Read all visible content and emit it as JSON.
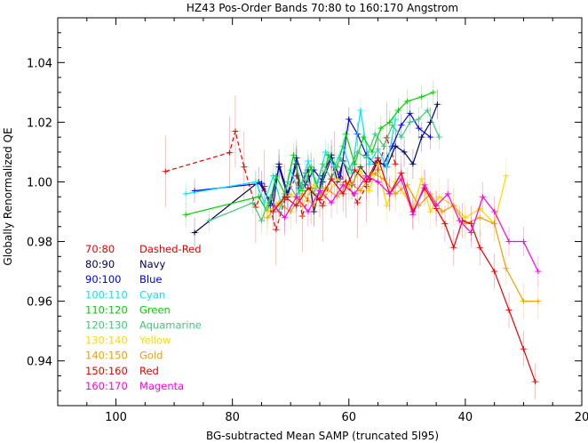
{
  "chart_data": {
    "type": "line",
    "title": "HZ43 Pos-Order Bands 70:80 to 160:170 Angstrom",
    "xlabel": "BG-subtracted Mean SAMP (truncated 5l95)",
    "ylabel": "Globally Renormalized QE",
    "xlim": [
      110,
      20
    ],
    "ylim": [
      0.925,
      1.055
    ],
    "x_reversed": true,
    "xticks": [
      100,
      80,
      60,
      40,
      20
    ],
    "yticks": [
      0.94,
      0.96,
      0.98,
      1.0,
      1.02,
      1.04
    ],
    "ytick_labels": [
      "0.94",
      "0.96",
      "0.98",
      "1.00",
      "1.02",
      "1.04"
    ],
    "grid": false,
    "legend_position": "bottom-left",
    "series": [
      {
        "name": "70:80",
        "style": "Dashed-Red",
        "color": "#e80000",
        "dashed": true,
        "x": [
          91.5,
          80.5,
          79.5,
          78.0,
          76.0,
          74.5,
          72.5,
          71.0,
          69.0,
          68.0,
          66.5,
          64.5,
          62.5,
          60.5,
          58.5,
          57.0,
          55.0,
          53.5,
          52.0
        ],
        "y": [
          1.0035,
          1.0098,
          1.017,
          1.005,
          0.9915,
          0.9985,
          0.984,
          0.994,
          1.002,
          0.9885,
          0.9978,
          0.992,
          1.005,
          1.0,
          0.993,
          0.9985,
          1.004,
          1.0148,
          1.006
        ],
        "yerr": 0.012
      },
      {
        "name": "80:90",
        "style": "Navy",
        "color": "#00005a",
        "dashed": false,
        "x": [
          86.5,
          75.5,
          73.0,
          72.0,
          70.5,
          69.0,
          68.5,
          67.0,
          66.0,
          64.5,
          63.0,
          62.0,
          61.0,
          59.5,
          58.0,
          56.5,
          55.0,
          53.5,
          52.0,
          50.5,
          49.0,
          47.5,
          46.0,
          44.8
        ],
        "y": [
          0.983,
          1.0,
          0.992,
          1.006,
          0.996,
          1.006,
          0.998,
          1.004,
          0.99,
          1.002,
          1.009,
          1.0,
          1.007,
          0.999,
          1.005,
          1.001,
          1.007,
          1.005,
          1.012,
          1.01,
          1.006,
          1.015,
          1.02,
          1.026
        ],
        "yerr": 0.005
      },
      {
        "name": "90:100",
        "style": "Blue",
        "color": "#0000e0",
        "dashed": false,
        "x": [
          86.5,
          75.0,
          73.5,
          72.0,
          70.5,
          69.0,
          67.5,
          66.0,
          64.5,
          63.0,
          61.5,
          60.0,
          58.5,
          57.0,
          55.5,
          54.0,
          52.5,
          51.0,
          49.5,
          48.0,
          46.0
        ],
        "y": [
          0.997,
          0.9995,
          0.992,
          1.005,
          0.995,
          1.008,
          0.999,
          1.004,
          1.0,
          1.008,
          1.001,
          1.021,
          1.016,
          1.009,
          1.006,
          1.006,
          1.012,
          1.019,
          1.023,
          1.018,
          1.015
        ],
        "yerr": 0.004
      },
      {
        "name": "100:110",
        "style": "Cyan",
        "color": "#00e8f0",
        "dashed": false,
        "x": [
          88.0,
          76.0,
          74.5,
          73.0,
          71.5,
          70.0,
          68.5,
          67.0,
          65.5,
          64.0,
          62.5,
          61.0,
          59.5,
          58.0,
          56.5,
          55.0,
          53.5,
          52.0
        ],
        "y": [
          0.996,
          1.0,
          0.993,
          1.002,
          0.992,
          1.004,
          0.996,
          1.007,
          0.998,
          1.01,
          1.005,
          1.012,
          1.003,
          1.024,
          1.006,
          1.011,
          1.005,
          1.021
        ],
        "yerr": 0.004
      },
      {
        "name": "110:120",
        "style": "Green",
        "color": "#00d000",
        "dashed": false,
        "x": [
          88.0,
          75.5,
          74.0,
          72.5,
          71.0,
          69.5,
          68.0,
          66.5,
          65.0,
          63.5,
          62.0,
          60.5,
          59.0,
          57.5,
          56.0,
          54.5,
          53.0,
          51.5,
          50.0,
          47.5,
          45.5
        ],
        "y": [
          0.989,
          0.995,
          0.99,
          1.002,
          0.996,
          1.009,
          0.997,
          1.005,
          0.996,
          1.009,
          1.005,
          1.016,
          1.006,
          1.015,
          1.01,
          1.018,
          1.02,
          1.024,
          1.027,
          1.0285,
          1.03
        ],
        "yerr": 0.004
      },
      {
        "name": "120:130",
        "style": "Aquamarine",
        "color": "#3cc87c",
        "dashed": false,
        "x": [
          84.0,
          76.5,
          75.0,
          73.5,
          72.0,
          70.5,
          69.0,
          67.5,
          66.0,
          64.5,
          63.0,
          61.5,
          60.0,
          58.5,
          57.0,
          55.5,
          54.0,
          52.5,
          51.0,
          49.5,
          48.0,
          46.5,
          44.5
        ],
        "y": [
          0.987,
          0.993,
          0.987,
          0.995,
          0.99,
          1.0,
          0.995,
          1.003,
          0.996,
          1.006,
          1.001,
          1.008,
          1.004,
          1.01,
          1.008,
          1.016,
          1.012,
          1.019,
          1.015,
          1.02,
          1.021,
          1.024,
          1.015
        ],
        "yerr": 0.004
      },
      {
        "name": "130:140",
        "style": "Yellow",
        "color": "#ffd800",
        "dashed": false,
        "x": [
          74.0,
          72.0,
          70.0,
          68.0,
          66.0,
          64.0,
          62.0,
          60.0,
          58.0,
          56.5,
          55.0,
          53.5,
          52.0,
          50.5,
          49.0,
          47.5,
          46.0,
          44.5,
          42.0,
          40.0,
          37.5,
          35.0,
          33.0
        ],
        "y": [
          0.99,
          0.993,
          0.996,
          0.992,
          0.999,
          0.995,
          1.001,
          0.998,
          1.004,
          0.997,
          1.006,
          0.992,
          1.0,
          0.996,
          0.991,
          1.001,
          0.99,
          0.995,
          0.992,
          0.988,
          0.991,
          0.986,
          1.002
        ],
        "yerr": 0.006
      },
      {
        "name": "140:150",
        "style": "Gold",
        "color": "#f0a000",
        "dashed": false,
        "x": [
          74.0,
          72.0,
          70.0,
          68.0,
          66.0,
          64.0,
          62.0,
          60.0,
          58.0,
          56.0,
          54.0,
          52.0,
          50.0,
          48.0,
          46.0,
          44.0,
          42.0,
          40.0,
          37.5,
          35.0,
          33.0,
          30.0,
          27.5
        ],
        "y": [
          0.988,
          0.993,
          0.99,
          0.996,
          0.992,
          0.998,
          0.995,
          1.0,
          0.997,
          1.003,
          1.001,
          0.996,
          0.999,
          0.992,
          0.996,
          0.99,
          0.992,
          0.986,
          0.988,
          0.986,
          0.971,
          0.96,
          0.96
        ],
        "yerr": 0.006
      },
      {
        "name": "150:160",
        "style": "Red",
        "color": "#e80000",
        "dashed": false,
        "x": [
          73.0,
          71.0,
          69.0,
          67.0,
          65.0,
          63.0,
          61.0,
          59.0,
          57.0,
          55.0,
          53.0,
          51.0,
          49.0,
          47.0,
          45.0,
          43.5,
          42.0,
          40.5,
          39.0,
          37.5,
          35.0,
          32.5,
          30.0,
          28.0
        ],
        "y": [
          0.99,
          0.995,
          0.992,
          0.998,
          0.994,
          1.001,
          0.996,
          1.004,
          1.0,
          1.008,
          0.996,
          1.003,
          0.99,
          0.998,
          0.991,
          0.986,
          0.978,
          0.987,
          0.986,
          0.978,
          0.97,
          0.957,
          0.944,
          0.933
        ],
        "yerr": 0.006
      },
      {
        "name": "160:170",
        "style": "Magenta",
        "color": "#ff00e0",
        "dashed": false,
        "x": [
          73.0,
          71.0,
          69.0,
          67.0,
          65.0,
          63.0,
          61.0,
          59.0,
          57.0,
          55.0,
          53.0,
          51.0,
          49.0,
          47.0,
          45.0,
          43.0,
          41.0,
          39.0,
          37.0,
          35.0,
          32.5,
          30.0,
          27.5
        ],
        "y": [
          0.992,
          0.988,
          0.995,
          0.99,
          0.997,
          0.993,
          0.999,
          0.996,
          1.002,
          1.0,
          0.996,
          1.001,
          0.989,
          0.999,
          0.992,
          0.996,
          0.987,
          0.983,
          0.995,
          0.99,
          0.98,
          0.98,
          0.97
        ],
        "yerr": 0.005
      }
    ]
  }
}
